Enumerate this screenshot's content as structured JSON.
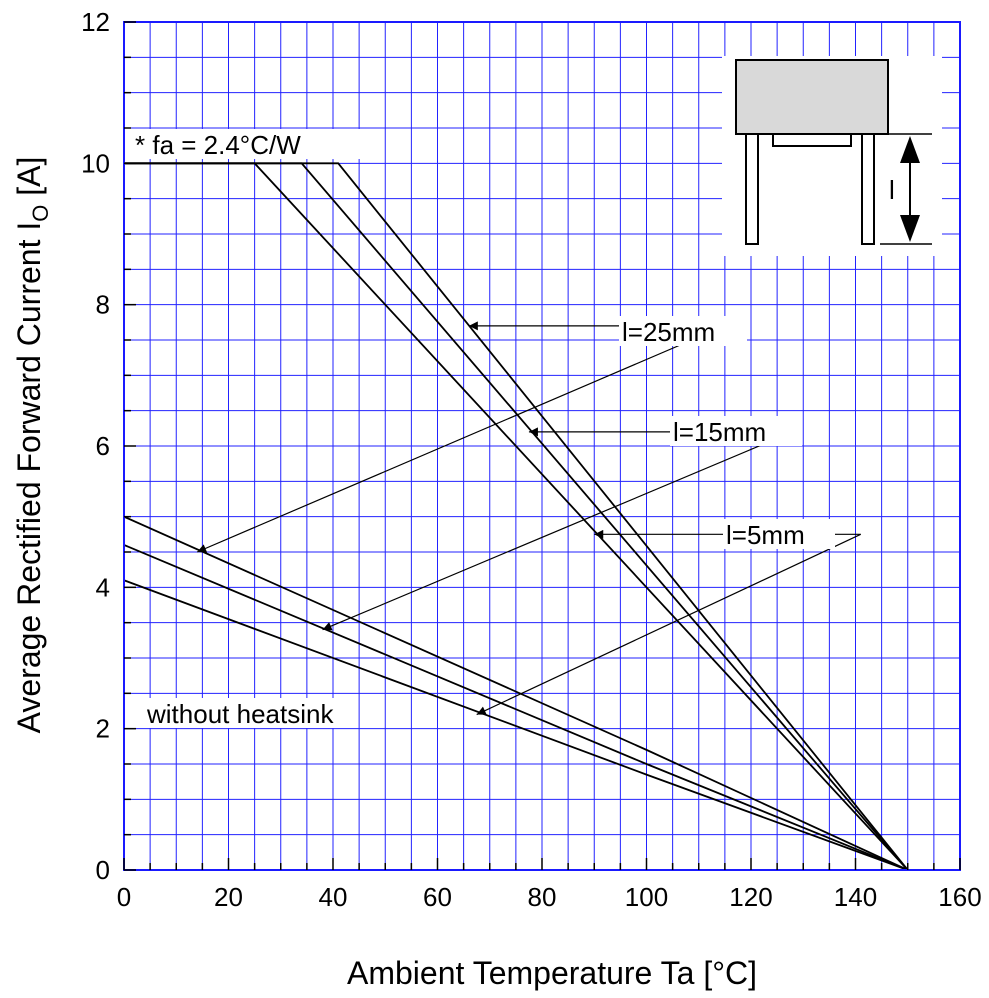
{
  "chart_data": {
    "type": "line",
    "title": "",
    "xlabel": "Ambient Temperature  Ta  [°C]",
    "ylabel_main": "Average Rectified Forward Current  I",
    "ylabel_sub": "O",
    "ylabel_unit": " [A]",
    "xlim": [
      0,
      160
    ],
    "ylim": [
      0,
      12
    ],
    "x_ticks": [
      "0",
      "20",
      "40",
      "60",
      "80",
      "100",
      "120",
      "140",
      "160"
    ],
    "y_ticks": [
      "0",
      "2",
      "4",
      "6",
      "8",
      "10",
      "12"
    ],
    "grid": true,
    "series": [
      {
        "points": [
          [
            0,
            10
          ],
          [
            25,
            10
          ],
          [
            150,
            0
          ]
        ]
      },
      {
        "points": [
          [
            0,
            10
          ],
          [
            34,
            10
          ],
          [
            150,
            0
          ]
        ]
      },
      {
        "points": [
          [
            0,
            10
          ],
          [
            41,
            10
          ],
          [
            150,
            0
          ]
        ]
      },
      {
        "points": [
          [
            0,
            4.1
          ],
          [
            100,
            1.35
          ],
          [
            150,
            0
          ]
        ]
      },
      {
        "points": [
          [
            0,
            4.6
          ],
          [
            100,
            1.5
          ],
          [
            150,
            0
          ]
        ]
      },
      {
        "points": [
          [
            0,
            5.0
          ],
          [
            100,
            1.7
          ],
          [
            150,
            0
          ]
        ]
      }
    ],
    "annotations": {
      "heatsink": "*    fa = 2.4°C/W",
      "without": "without  heatsink",
      "l25": "l=25mm",
      "l15": "l=15mm",
      "l5": "l=5mm",
      "inset_label": "l"
    },
    "leaders": [
      {
        "from": [
          115,
          7.7
        ],
        "to": [
          66,
          7.7
        ]
      },
      {
        "from": [
          115,
          7.7
        ],
        "to": [
          14,
          4.5
        ]
      },
      {
        "from": [
          128,
          6.2
        ],
        "to": [
          77.5,
          6.2
        ]
      },
      {
        "from": [
          128,
          6.2
        ],
        "to": [
          38,
          3.4
        ]
      },
      {
        "from": [
          141,
          4.75
        ],
        "to": [
          90,
          4.75
        ]
      },
      {
        "from": [
          141,
          4.75
        ],
        "to": [
          67.5,
          2.2
        ]
      }
    ]
  }
}
